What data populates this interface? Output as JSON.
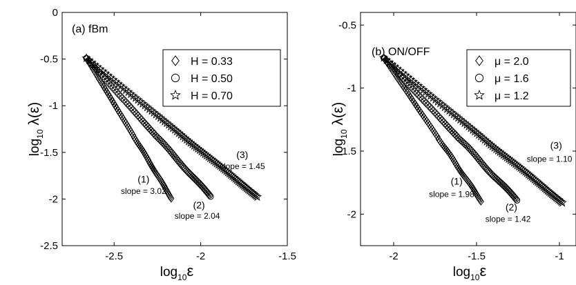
{
  "chart_data": [
    {
      "type": "line",
      "title": "(a) fBm",
      "xlabel": "log10 ε",
      "ylabel": "log10 λ(ε)",
      "xlim": [
        -2.8,
        -1.5
      ],
      "ylim": [
        -2.5,
        0
      ],
      "xticks": [
        "-2.5",
        "-2",
        "-1.5"
      ],
      "yticks": [
        "0",
        "-0.5",
        "-1",
        "-1.5",
        "-2",
        "-2.5"
      ],
      "legend": "top-right",
      "series": [
        {
          "name": "H = 0.33",
          "marker": "diamond",
          "x_range": [
            -2.66,
            -2.17
          ],
          "y_range": [
            -0.49,
            -1.99
          ],
          "label": "(1)",
          "slope_text": "slope = 3.02"
        },
        {
          "name": "H = 0.50",
          "marker": "circle",
          "x_range": [
            -2.66,
            -1.94
          ],
          "y_range": [
            -0.49,
            -1.98
          ],
          "label": "(2)",
          "slope_text": "slope = 2.04"
        },
        {
          "name": "H = 0.70",
          "marker": "star",
          "x_range": [
            -2.66,
            -1.67
          ],
          "y_range": [
            -0.49,
            -1.98
          ],
          "label": "(3)",
          "slope_text": "slope = 1.45"
        }
      ]
    },
    {
      "type": "line",
      "title": "(b) ON/OFF",
      "xlabel": "log10 ε",
      "ylabel": "log10 λ(ε)",
      "xlim": [
        -2.2,
        -0.9
      ],
      "ylim": [
        -2.25,
        -0.4
      ],
      "xticks": [
        "-2",
        "-1.5",
        "-1"
      ],
      "yticks": [
        "-0.5",
        "-1",
        "-1.5",
        "-2"
      ],
      "legend": "top-right",
      "series": [
        {
          "name": "μ = 2.0",
          "marker": "diamond",
          "x_range": [
            -2.06,
            -1.47
          ],
          "y_range": [
            -0.76,
            -1.9
          ],
          "label": "(1)",
          "slope_text": "slope = 1.98"
        },
        {
          "name": "μ = 1.6",
          "marker": "circle",
          "x_range": [
            -2.06,
            -1.25
          ],
          "y_range": [
            -0.76,
            -1.9
          ],
          "label": "(2)",
          "slope_text": "slope = 1.42"
        },
        {
          "name": "μ = 1.2",
          "marker": "star",
          "x_range": [
            -2.06,
            -0.98
          ],
          "y_range": [
            -0.76,
            -1.91
          ],
          "label": "(3)",
          "slope_text": "slope = 1.10"
        }
      ]
    }
  ]
}
